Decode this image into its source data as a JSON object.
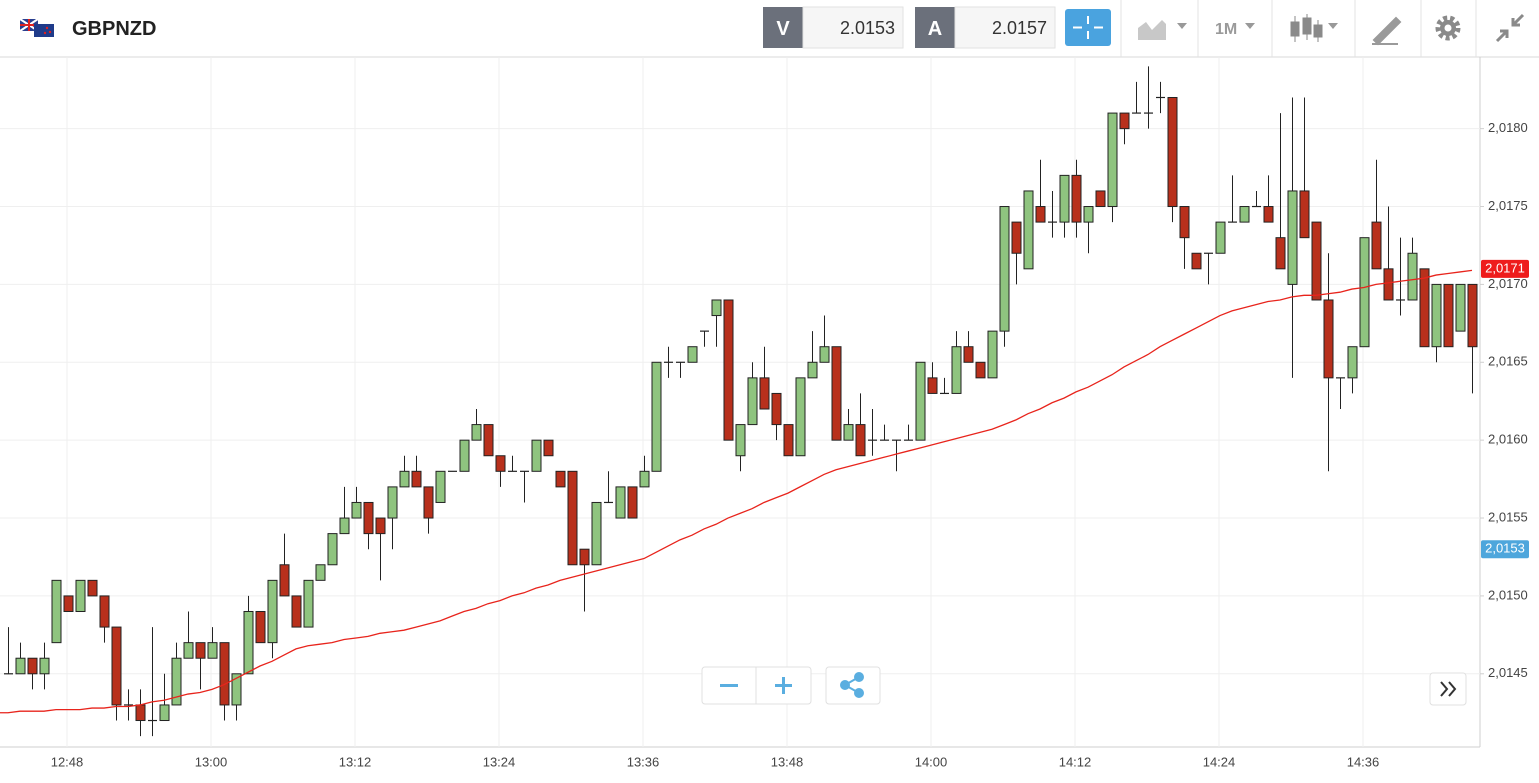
{
  "header": {
    "symbol": "GBPNZD",
    "sell_label": "V",
    "sell_price": "2.0153",
    "buy_label": "A",
    "buy_price": "2.0157",
    "timeframe": "1M"
  },
  "chart_data": {
    "type": "candlestick",
    "categories": [
      null,
      null,
      null,
      null,
      null,
      "12:48",
      null,
      null,
      null,
      null,
      null,
      null,
      null,
      null,
      null,
      null,
      null,
      "13:00",
      null,
      null,
      null,
      null,
      null,
      null,
      null,
      null,
      null,
      null,
      null,
      "13:12",
      null,
      null,
      null,
      null,
      null,
      null,
      null,
      null,
      null,
      null,
      null,
      "13:24",
      null,
      null,
      null,
      null,
      null,
      null,
      null,
      null,
      null,
      null,
      null,
      "13:36",
      null,
      null,
      null,
      null,
      null,
      null,
      null,
      null,
      null,
      null,
      null,
      "13:48",
      null,
      null,
      null,
      null,
      null,
      null,
      null,
      null,
      null,
      null,
      null,
      "14:00",
      null,
      null,
      null,
      null,
      null,
      null,
      null,
      null,
      null,
      null,
      null,
      "14:12",
      null,
      null,
      null,
      null,
      null,
      null,
      null,
      null,
      null,
      null,
      null,
      "14:24",
      null,
      null,
      null,
      null,
      null,
      null,
      null,
      null,
      null,
      null,
      null,
      "14:36",
      null,
      null,
      null,
      null,
      null,
      null,
      null,
      null,
      null
    ],
    "open": [
      2.0145,
      2.0145,
      2.0146,
      2.0145,
      2.0147,
      2.015,
      2.0149,
      2.0151,
      2.015,
      2.0148,
      2.0143,
      2.0143,
      2.0142,
      2.0142,
      2.0143,
      2.0146,
      2.0147,
      2.0146,
      2.0147,
      2.0143,
      2.0145,
      2.0149,
      2.0147,
      2.0152,
      2.015,
      2.0148,
      2.0151,
      2.0152,
      2.0154,
      2.0155,
      2.0156,
      2.0155,
      2.0155,
      2.0157,
      2.0158,
      2.0157,
      2.0156,
      2.0158,
      2.0158,
      2.016,
      2.0161,
      2.0159,
      2.0158,
      2.0158,
      2.0158,
      2.016,
      2.0158,
      2.0158,
      2.0153,
      2.0152,
      2.0156,
      2.0155,
      2.0157,
      2.0157,
      2.0158,
      2.0165,
      2.0165,
      2.0165,
      2.0167,
      2.0168,
      2.0169,
      2.0159,
      2.0161,
      2.0164,
      2.0163,
      2.0161,
      2.0159,
      2.0164,
      2.0165,
      2.0166,
      2.016,
      2.0161,
      2.016,
      2.016,
      2.016,
      2.016,
      2.016,
      2.0164,
      2.0163,
      2.0163,
      2.0166,
      2.0165,
      2.0164,
      2.0167,
      2.0174,
      2.0171,
      2.0175,
      2.0174,
      2.0174,
      2.0177,
      2.0174,
      2.0176,
      2.0175,
      2.0181,
      2.0181,
      2.0181,
      2.0182,
      2.0182,
      2.0175,
      2.0172,
      2.0172,
      2.0172,
      2.0174,
      2.0174,
      2.0175,
      2.0175,
      2.0173,
      2.017,
      2.0176,
      2.0174,
      2.0169,
      2.0164,
      2.0164,
      2.0166,
      2.0174,
      2.0171,
      2.0169,
      2.0169,
      2.0171,
      2.0166,
      2.017,
      2.0167,
      2.017
    ],
    "high": [
      2.0148,
      2.0147,
      2.0146,
      2.0147,
      2.0151,
      2.015,
      2.0151,
      2.0151,
      2.015,
      2.0148,
      2.0144,
      2.0144,
      2.0148,
      2.0145,
      2.0147,
      2.0149,
      2.0147,
      2.0148,
      2.0147,
      2.0145,
      2.015,
      2.0149,
      2.0151,
      2.0154,
      2.015,
      2.0151,
      2.0152,
      2.0154,
      2.0157,
      2.0157,
      2.0156,
      2.0155,
      2.0157,
      2.0159,
      2.0159,
      2.0157,
      2.0158,
      2.0158,
      2.016,
      2.0162,
      2.0161,
      2.0159,
      2.0159,
      2.0158,
      2.016,
      2.016,
      2.0158,
      2.0158,
      2.0153,
      2.0156,
      2.0158,
      2.0157,
      2.0157,
      2.0159,
      2.0165,
      2.0166,
      2.0165,
      2.0166,
      2.0167,
      2.0169,
      2.0169,
      2.0161,
      2.0165,
      2.0166,
      2.0163,
      2.0161,
      2.0164,
      2.0167,
      2.0168,
      2.0166,
      2.0162,
      2.0163,
      2.0162,
      2.0161,
      2.016,
      2.0161,
      2.0165,
      2.0165,
      2.0164,
      2.0167,
      2.0167,
      2.0165,
      2.0167,
      2.0175,
      2.0174,
      2.0176,
      2.0178,
      2.0176,
      2.0177,
      2.0178,
      2.0175,
      2.0176,
      2.0181,
      2.0181,
      2.0183,
      2.0184,
      2.0183,
      2.0182,
      2.0175,
      2.0172,
      2.0172,
      2.0174,
      2.0177,
      2.0175,
      2.0176,
      2.0177,
      2.0181,
      2.0182,
      2.0182,
      2.0174,
      2.0172,
      2.0164,
      2.0166,
      2.0173,
      2.0178,
      2.0175,
      2.0173,
      2.0173,
      2.0171,
      2.017,
      2.017,
      2.017,
      2.017
    ],
    "low": [
      2.0145,
      2.0145,
      2.0144,
      2.0144,
      2.0147,
      2.0149,
      2.0149,
      2.015,
      2.0147,
      2.0142,
      2.0142,
      2.0141,
      2.0141,
      2.0142,
      2.0143,
      2.0146,
      2.0144,
      2.0146,
      2.0142,
      2.0142,
      2.0145,
      2.0147,
      2.0146,
      2.015,
      2.0148,
      2.0148,
      2.0151,
      2.0152,
      2.0154,
      2.0155,
      2.0153,
      2.0151,
      2.0153,
      2.0157,
      2.0157,
      2.0154,
      2.0156,
      2.0158,
      2.0158,
      2.016,
      2.0159,
      2.0157,
      2.0158,
      2.0156,
      2.0158,
      2.0159,
      2.0157,
      2.0152,
      2.0149,
      2.0152,
      2.0156,
      2.0155,
      2.0155,
      2.0157,
      2.0158,
      2.0164,
      2.0164,
      2.0165,
      2.0166,
      2.0166,
      2.016,
      2.0158,
      2.0161,
      2.0162,
      2.016,
      2.0159,
      2.0159,
      2.0164,
      2.0165,
      2.016,
      2.016,
      2.0159,
      2.0159,
      2.016,
      2.0158,
      2.016,
      2.016,
      2.0163,
      2.0163,
      2.0163,
      2.0165,
      2.0164,
      2.0164,
      2.0166,
      2.017,
      2.0171,
      2.0174,
      2.0173,
      2.0173,
      2.0173,
      2.0172,
      2.0175,
      2.0174,
      2.0179,
      2.0181,
      2.018,
      2.0181,
      2.0174,
      2.0171,
      2.0171,
      2.017,
      2.0172,
      2.0174,
      2.0174,
      2.0175,
      2.0174,
      2.0171,
      2.0164,
      2.0173,
      2.0169,
      2.0158,
      2.0162,
      2.0163,
      2.0166,
      2.0171,
      2.0169,
      2.0168,
      2.0169,
      2.0166,
      2.0165,
      2.0166,
      2.0167,
      2.0163
    ],
    "close": [
      2.0145,
      2.0146,
      2.0145,
      2.0146,
      2.0151,
      2.0149,
      2.0151,
      2.015,
      2.0148,
      2.0143,
      2.0143,
      2.0142,
      2.0142,
      2.0143,
      2.0146,
      2.0147,
      2.0146,
      2.0147,
      2.0143,
      2.0145,
      2.0149,
      2.0147,
      2.0151,
      2.015,
      2.0148,
      2.0151,
      2.0152,
      2.0154,
      2.0155,
      2.0156,
      2.0154,
      2.0154,
      2.0157,
      2.0158,
      2.0157,
      2.0155,
      2.0158,
      2.0158,
      2.016,
      2.0161,
      2.0159,
      2.0158,
      2.0158,
      2.0158,
      2.016,
      2.0159,
      2.0157,
      2.0152,
      2.0152,
      2.0156,
      2.0156,
      2.0157,
      2.0155,
      2.0158,
      2.0165,
      2.0165,
      2.0165,
      2.0166,
      2.0167,
      2.0169,
      2.016,
      2.0161,
      2.0164,
      2.0162,
      2.0161,
      2.0159,
      2.0164,
      2.0165,
      2.0166,
      2.016,
      2.0161,
      2.0159,
      2.016,
      2.016,
      2.016,
      2.016,
      2.0165,
      2.0163,
      2.0163,
      2.0166,
      2.0165,
      2.0164,
      2.0167,
      2.0175,
      2.0172,
      2.0176,
      2.0174,
      2.0174,
      2.0177,
      2.0174,
      2.0175,
      2.0175,
      2.0181,
      2.018,
      2.0181,
      2.0181,
      2.0182,
      2.0175,
      2.0173,
      2.0171,
      2.0172,
      2.0174,
      2.0174,
      2.0175,
      2.0175,
      2.0174,
      2.0171,
      2.0176,
      2.0173,
      2.0169,
      2.0164,
      2.0164,
      2.0166,
      2.0173,
      2.0171,
      2.0169,
      2.0169,
      2.0172,
      2.0166,
      2.017,
      2.0166,
      2.017,
      2.0166
    ],
    "up_color": "#8fc47f",
    "down_color": "#b8301c",
    "moving_average": {
      "color": "#e8241c",
      "values": [
        2.01425,
        2.01426,
        2.01426,
        2.01426,
        2.01427,
        2.01427,
        2.01427,
        2.01428,
        2.01428,
        2.01429,
        2.01429,
        2.0143,
        2.01432,
        2.01433,
        2.01435,
        2.01437,
        2.01438,
        2.0144,
        2.01443,
        2.01447,
        2.01451,
        2.01455,
        2.01458,
        2.01462,
        2.01466,
        2.01468,
        2.01469,
        2.0147,
        2.01472,
        2.01473,
        2.01474,
        2.01476,
        2.01477,
        2.01478,
        2.0148,
        2.01482,
        2.01484,
        2.01487,
        2.0149,
        2.01492,
        2.01495,
        2.01497,
        2.015,
        2.01502,
        2.01505,
        2.01507,
        2.0151,
        2.01512,
        2.01514,
        2.01516,
        2.01518,
        2.0152,
        2.01522,
        2.01524,
        2.01528,
        2.01532,
        2.01536,
        2.01539,
        2.01543,
        2.01546,
        2.0155,
        2.01553,
        2.01556,
        2.0156,
        2.01563,
        2.01566,
        2.0157,
        2.01574,
        2.01578,
        2.01581,
        2.01583,
        2.01585,
        2.01587,
        2.01589,
        2.01591,
        2.01593,
        2.01595,
        2.01597,
        2.01599,
        2.01601,
        2.01603,
        2.01605,
        2.01607,
        2.0161,
        2.01613,
        2.01617,
        2.0162,
        2.01624,
        2.01627,
        2.01631,
        2.01634,
        2.01638,
        2.01642,
        2.01647,
        2.01651,
        2.01655,
        2.0166,
        2.01664,
        2.01668,
        2.01672,
        2.01676,
        2.0168,
        2.01683,
        2.01685,
        2.01687,
        2.01689,
        2.0169,
        2.01692,
        2.01693,
        2.01693,
        2.01694,
        2.01695,
        2.01697,
        2.01698,
        2.017,
        2.01701,
        2.01702,
        2.01703,
        2.01704,
        2.01706,
        2.01707,
        2.01708,
        2.01709
      ]
    },
    "ylim": [
      2.01403,
      2.01846
    ],
    "yticks": [
      {
        "value": 2.0145,
        "label": "2,0145"
      },
      {
        "value": 2.015,
        "label": "2,0150"
      },
      {
        "value": 2.0155,
        "label": "2,0155"
      },
      {
        "value": 2.016,
        "label": "2,0160"
      },
      {
        "value": 2.0165,
        "label": "2,0165"
      },
      {
        "value": 2.017,
        "label": "2,0170"
      },
      {
        "value": 2.0175,
        "label": "2,0175"
      },
      {
        "value": 2.018,
        "label": "2,0180"
      }
    ],
    "grid": true,
    "price_tags": [
      {
        "value": 2.0171,
        "label": "2,0171",
        "color": "#ee1c1c"
      },
      {
        "value": 2.0153,
        "label": "2,0153",
        "color": "#4ea6dc"
      }
    ]
  }
}
